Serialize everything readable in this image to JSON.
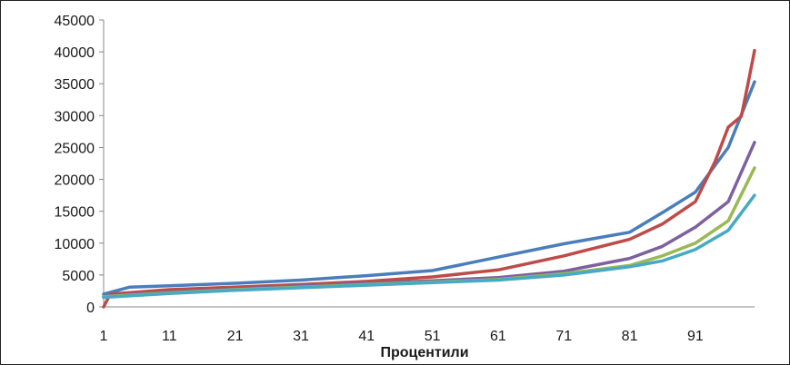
{
  "chart_data": {
    "type": "line",
    "xlabel": "Процентили",
    "ylabel": "",
    "title": "",
    "ylim": [
      0,
      45000
    ],
    "xlim": [
      1,
      100
    ],
    "y_ticks": [
      "0",
      "5000",
      "10000",
      "15000",
      "20000",
      "25000",
      "30000",
      "35000",
      "40000",
      "45000"
    ],
    "x_ticks": [
      "1",
      "11",
      "21",
      "31",
      "41",
      "51",
      "61",
      "71",
      "81",
      "91"
    ],
    "grid": false,
    "legend": "none",
    "series": [
      {
        "color": "#4a7ebb",
        "x": [
          1,
          5,
          11,
          21,
          31,
          41,
          51,
          61,
          71,
          81,
          86,
          91,
          96,
          100
        ],
        "y": [
          2000,
          3100,
          3300,
          3700,
          4200,
          4900,
          5700,
          7800,
          9900,
          11700,
          14800,
          18000,
          25000,
          35300
        ]
      },
      {
        "color": "#be4b48",
        "x": [
          1,
          2,
          11,
          21,
          31,
          41,
          51,
          61,
          71,
          81,
          86,
          91,
          94,
          96,
          98,
          99,
          100
        ],
        "y": [
          0,
          2000,
          2700,
          3100,
          3500,
          4000,
          4700,
          5800,
          8000,
          10600,
          13000,
          16500,
          22800,
          28200,
          29900,
          35000,
          40200
        ]
      },
      {
        "color": "#7d60a0",
        "x": [
          1,
          11,
          21,
          31,
          41,
          51,
          61,
          71,
          81,
          86,
          91,
          96,
          100
        ],
        "y": [
          1700,
          2300,
          2800,
          3300,
          3700,
          4100,
          4600,
          5600,
          7600,
          9500,
          12500,
          16500,
          25800
        ]
      },
      {
        "color": "#98b954",
        "x": [
          1,
          11,
          21,
          31,
          41,
          51,
          61,
          71,
          81,
          86,
          91,
          96,
          100
        ],
        "y": [
          1600,
          2200,
          2700,
          3100,
          3500,
          3900,
          4300,
          5200,
          6500,
          8000,
          10000,
          13500,
          21800
        ]
      },
      {
        "color": "#46aac5",
        "x": [
          1,
          11,
          21,
          31,
          41,
          51,
          61,
          71,
          81,
          86,
          91,
          96,
          100
        ],
        "y": [
          1500,
          2100,
          2600,
          3000,
          3400,
          3800,
          4200,
          5000,
          6300,
          7200,
          9000,
          12000,
          17500
        ]
      }
    ]
  }
}
